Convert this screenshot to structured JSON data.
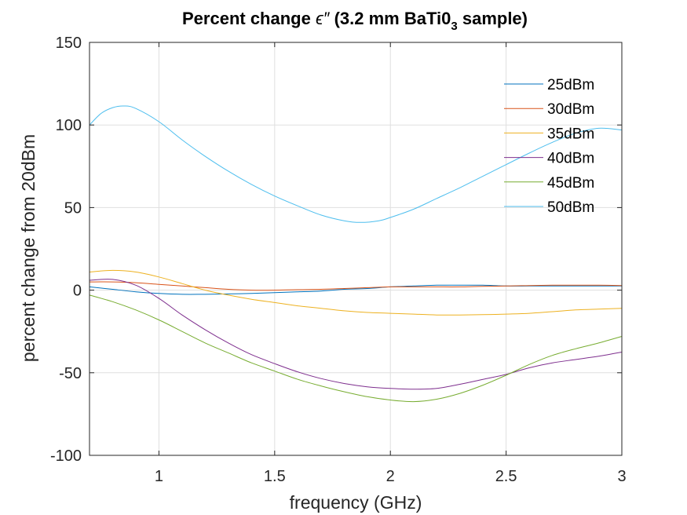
{
  "chart_data": {
    "type": "line",
    "title": "Percent change",
    "title_symbol": "ϵ″",
    "title_paren": "(3.2 mm BaTi0",
    "title_sub": "3",
    "title_end": "sample)",
    "xlabel": "frequency (GHz)",
    "ylabel": "percent change from 20dBm",
    "xlim": [
      0.7,
      3.0
    ],
    "ylim": [
      -100,
      150
    ],
    "xticks": [
      1,
      1.5,
      2,
      2.5,
      3
    ],
    "xtick_labels": [
      "1",
      "1.5",
      "2",
      "2.5",
      "3"
    ],
    "yticks": [
      -100,
      -50,
      0,
      50,
      100,
      150
    ],
    "ytick_labels": [
      "-100",
      "-50",
      "0",
      "50",
      "100",
      "150"
    ],
    "grid": true,
    "legend_position": "top-right",
    "series": [
      {
        "name": "25dBm",
        "color": "#0072BD",
        "x": [
          0.7,
          0.8,
          0.9,
          1.0,
          1.1,
          1.2,
          1.3,
          1.4,
          1.5,
          1.6,
          1.7,
          1.8,
          1.9,
          2.0,
          2.1,
          2.2,
          2.3,
          2.4,
          2.5,
          2.6,
          2.7,
          2.8,
          2.9,
          3.0
        ],
        "y": [
          2,
          0.5,
          -1,
          -2,
          -2.5,
          -2.5,
          -2.3,
          -2,
          -1.5,
          -1,
          -0.5,
          0.5,
          1,
          2,
          2.5,
          3,
          3,
          3,
          2.5,
          2.5,
          2.5,
          2.5,
          2.5,
          2.5
        ]
      },
      {
        "name": "30dBm",
        "color": "#D95319",
        "x": [
          0.7,
          0.8,
          0.9,
          1.0,
          1.1,
          1.2,
          1.3,
          1.4,
          1.5,
          1.6,
          1.7,
          1.8,
          1.9,
          2.0,
          2.1,
          2.2,
          2.3,
          2.4,
          2.5,
          2.6,
          2.7,
          2.8,
          2.9,
          3.0
        ],
        "y": [
          5,
          5,
          4.5,
          3.5,
          2.5,
          1.5,
          0.5,
          0,
          0,
          0.3,
          0.5,
          1,
          1.5,
          2,
          2,
          2,
          2,
          2.3,
          2.5,
          2.8,
          3,
          3,
          3,
          2.8
        ]
      },
      {
        "name": "35dBm",
        "color": "#EDB120",
        "x": [
          0.7,
          0.8,
          0.9,
          1.0,
          1.1,
          1.2,
          1.3,
          1.4,
          1.5,
          1.6,
          1.7,
          1.8,
          1.9,
          2.0,
          2.1,
          2.2,
          2.3,
          2.4,
          2.5,
          2.6,
          2.7,
          2.8,
          2.9,
          3.0
        ],
        "y": [
          11,
          12,
          11,
          8,
          4,
          0,
          -3,
          -5.5,
          -7.5,
          -9.5,
          -11,
          -12.5,
          -13.5,
          -14,
          -14.5,
          -15,
          -15,
          -14.8,
          -14.5,
          -14,
          -13,
          -12,
          -11.5,
          -11
        ]
      },
      {
        "name": "40dBm",
        "color": "#7E2F8E",
        "x": [
          0.7,
          0.8,
          0.9,
          1.0,
          1.1,
          1.2,
          1.3,
          1.4,
          1.5,
          1.6,
          1.7,
          1.8,
          1.9,
          2.0,
          2.1,
          2.2,
          2.3,
          2.4,
          2.5,
          2.6,
          2.7,
          2.8,
          2.9,
          3.0
        ],
        "y": [
          6,
          6.5,
          3,
          -5,
          -15,
          -24,
          -32,
          -39,
          -44.5,
          -49.5,
          -53.5,
          -56.5,
          -58.5,
          -59.5,
          -60,
          -59.5,
          -57,
          -54,
          -51,
          -47,
          -44,
          -42,
          -40,
          -37.5
        ]
      },
      {
        "name": "45dBm",
        "color": "#77AC30",
        "x": [
          0.7,
          0.8,
          0.9,
          1.0,
          1.1,
          1.2,
          1.3,
          1.4,
          1.5,
          1.6,
          1.7,
          1.8,
          1.9,
          2.0,
          2.1,
          2.2,
          2.3,
          2.4,
          2.5,
          2.6,
          2.7,
          2.8,
          2.9,
          3.0
        ],
        "y": [
          -3,
          -7,
          -12,
          -18,
          -25,
          -32,
          -38,
          -44,
          -49,
          -54,
          -58,
          -61.5,
          -64.5,
          -66.5,
          -67.5,
          -66,
          -62.5,
          -57.5,
          -51.5,
          -45,
          -39.5,
          -35.5,
          -32,
          -28
        ]
      },
      {
        "name": "50dBm",
        "color": "#4DBEEE",
        "x": [
          0.7,
          0.75,
          0.8,
          0.85,
          0.9,
          1.0,
          1.1,
          1.2,
          1.3,
          1.4,
          1.5,
          1.6,
          1.7,
          1.8,
          1.87,
          1.95,
          2.0,
          2.1,
          2.2,
          2.3,
          2.4,
          2.5,
          2.6,
          2.7,
          2.8,
          2.9,
          3.0
        ],
        "y": [
          100,
          107,
          110.5,
          111.5,
          110,
          102,
          91,
          81,
          72,
          64,
          57,
          51,
          45.5,
          42,
          41,
          42,
          44,
          49,
          55.5,
          62,
          69,
          76,
          83,
          89.5,
          95,
          98,
          97
        ]
      }
    ]
  }
}
